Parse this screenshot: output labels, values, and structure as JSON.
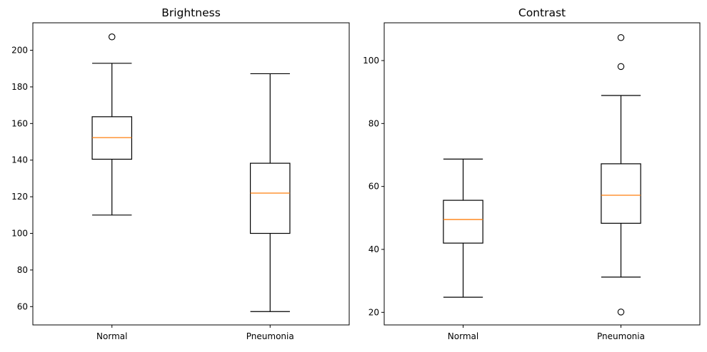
{
  "chart_data": [
    {
      "type": "box",
      "title": "Brightness",
      "xlabel": "",
      "ylabel": "",
      "categories": [
        "Normal",
        "Pneumonia"
      ],
      "ylim": [
        50,
        215
      ],
      "yticks": [
        60,
        80,
        100,
        120,
        140,
        160,
        180,
        200
      ],
      "grid": false,
      "boxes": [
        {
          "category": "Normal",
          "whisker_low": 110,
          "q1": 140.5,
          "median": 152.3,
          "q3": 163.7,
          "whisker_high": 192.9,
          "outliers": [
            207.3
          ]
        },
        {
          "category": "Pneumonia",
          "whisker_low": 57.3,
          "q1": 100,
          "median": 122,
          "q3": 138.3,
          "whisker_high": 187.2,
          "outliers": []
        }
      ]
    },
    {
      "type": "box",
      "title": "Contrast",
      "xlabel": "",
      "ylabel": "",
      "categories": [
        "Normal",
        "Pneumonia"
      ],
      "ylim": [
        16,
        112
      ],
      "yticks": [
        20,
        40,
        60,
        80,
        100
      ],
      "grid": false,
      "boxes": [
        {
          "category": "Normal",
          "whisker_low": 24.8,
          "q1": 42,
          "median": 49.5,
          "q3": 55.6,
          "whisker_high": 68.7,
          "outliers": []
        },
        {
          "category": "Pneumonia",
          "whisker_low": 31.2,
          "q1": 48.3,
          "median": 57.2,
          "q3": 67.2,
          "whisker_high": 88.9,
          "outliers": [
            107.3,
            98.1,
            20.1
          ]
        }
      ]
    }
  ],
  "style": {
    "box_color": "#000000",
    "median_color": "#ff7f0e",
    "background": "#ffffff"
  }
}
